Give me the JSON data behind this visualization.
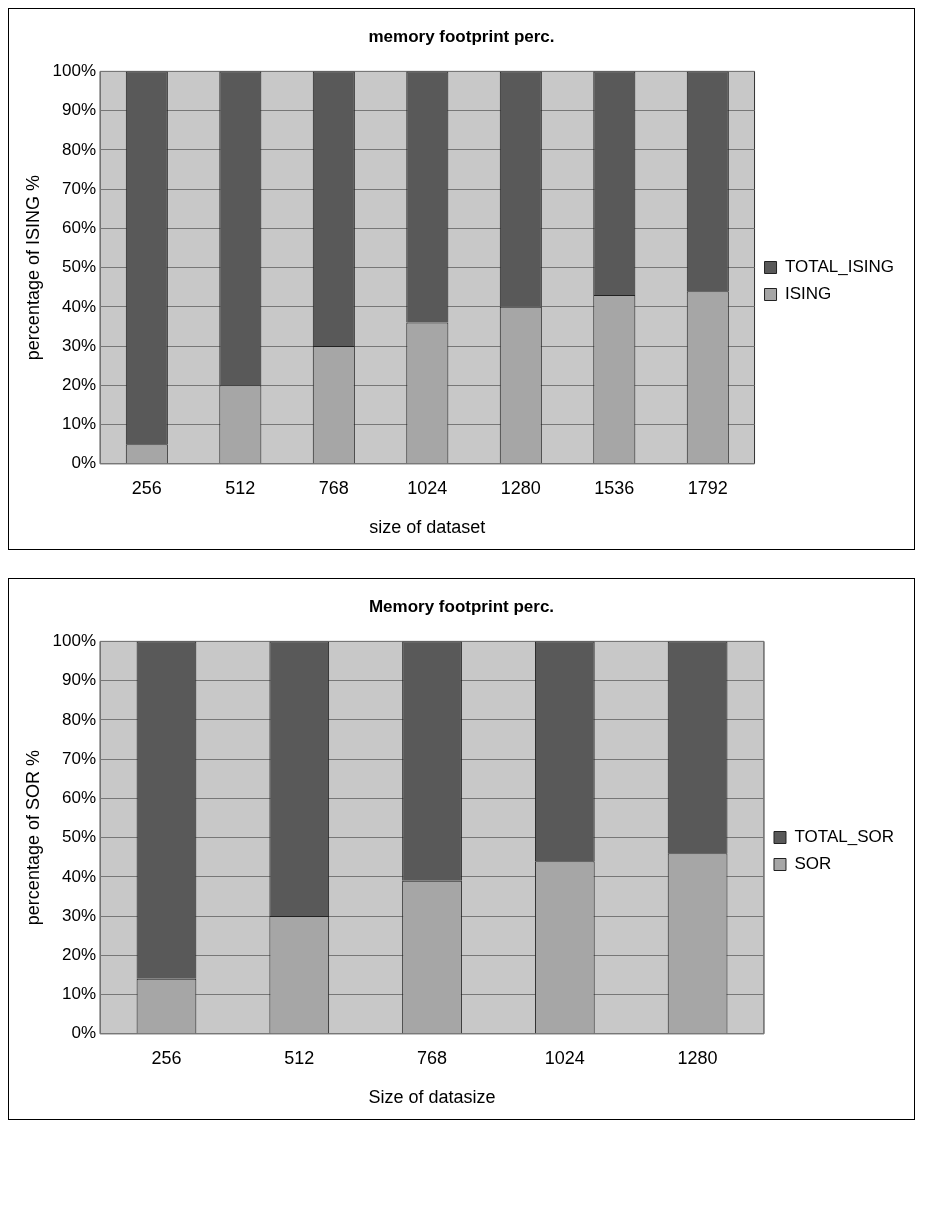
{
  "chart_data": [
    {
      "type": "bar",
      "title": "memory footprint perc.",
      "xlabel": "size of dataset",
      "ylabel": "percentage of ISING %",
      "categories": [
        "256",
        "512",
        "768",
        "1024",
        "1280",
        "1536",
        "1792"
      ],
      "stacked": true,
      "series": [
        {
          "name": "ISING",
          "color": "#a6a6a6",
          "values": [
            5,
            20,
            30,
            36,
            40,
            43,
            44
          ]
        },
        {
          "name": "TOTAL_ISING",
          "color": "#595959",
          "values": [
            95,
            80,
            70,
            64,
            60,
            57,
            56
          ]
        }
      ],
      "ylim": [
        0,
        100
      ],
      "yticks": [
        {
          "value": 0,
          "label": "0%"
        },
        {
          "value": 10,
          "label": "10%"
        },
        {
          "value": 20,
          "label": "20%"
        },
        {
          "value": 30,
          "label": "30%"
        },
        {
          "value": 40,
          "label": "40%"
        },
        {
          "value": 50,
          "label": "50%"
        },
        {
          "value": 60,
          "label": "60%"
        },
        {
          "value": 70,
          "label": "70%"
        },
        {
          "value": 80,
          "label": "80%"
        },
        {
          "value": 90,
          "label": "90%"
        },
        {
          "value": 100,
          "label": "100%"
        }
      ],
      "grid": "y",
      "legend": "right"
    },
    {
      "type": "bar",
      "title": "Memory footprint perc.",
      "xlabel": "Size of datasize",
      "ylabel": "percentage of SOR %",
      "categories": [
        "256",
        "512",
        "768",
        "1024",
        "1280"
      ],
      "stacked": true,
      "series": [
        {
          "name": "SOR",
          "color": "#a6a6a6",
          "values": [
            14,
            30,
            39,
            44,
            46
          ]
        },
        {
          "name": "TOTAL_SOR",
          "color": "#595959",
          "values": [
            86,
            70,
            61,
            56,
            54
          ]
        }
      ],
      "ylim": [
        0,
        100
      ],
      "yticks": [
        {
          "value": 0,
          "label": "0%"
        },
        {
          "value": 10,
          "label": "10%"
        },
        {
          "value": 20,
          "label": "20%"
        },
        {
          "value": 30,
          "label": "30%"
        },
        {
          "value": 40,
          "label": "40%"
        },
        {
          "value": 50,
          "label": "50%"
        },
        {
          "value": 60,
          "label": "60%"
        },
        {
          "value": 70,
          "label": "70%"
        },
        {
          "value": 80,
          "label": "80%"
        },
        {
          "value": 90,
          "label": "90%"
        },
        {
          "value": 100,
          "label": "100%"
        }
      ],
      "grid": "y",
      "legend": "right"
    }
  ]
}
